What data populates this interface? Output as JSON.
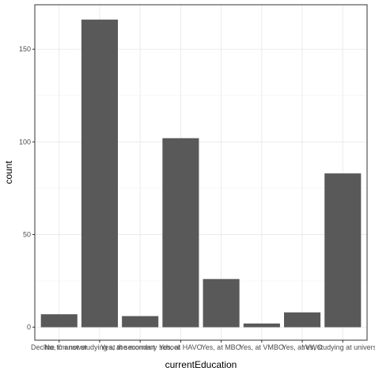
{
  "chart_data": {
    "type": "bar",
    "categories": [
      "Decline to answer",
      "No, I'm not studying at the moment",
      "Yes, at secondary school",
      "Yes, at HAVO",
      "Yes, at MBO",
      "Yes, at VMBO",
      "Yes, at VWO",
      "Yes, studying at university"
    ],
    "values": [
      7,
      166,
      6,
      102,
      26,
      2,
      8,
      83
    ],
    "title": "",
    "xlabel": "currentEducation",
    "ylabel": "count",
    "ylim": [
      -7,
      174
    ],
    "yticks": [
      0,
      50,
      100,
      150
    ],
    "grid": true,
    "bar_color": "#595959",
    "grid_color": "#ebebeb",
    "panel_border_color": "#333333"
  }
}
